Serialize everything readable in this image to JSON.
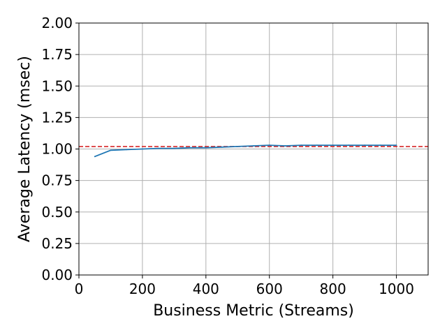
{
  "chart_data": {
    "type": "line",
    "title": "",
    "xlabel": "Business Metric (Streams)",
    "ylabel": "Average Latency (msec)",
    "xlim": [
      0,
      1100
    ],
    "ylim": [
      0,
      2.0
    ],
    "x_ticks": [
      0,
      200,
      400,
      600,
      800,
      1000
    ],
    "x_tick_labels": [
      "0",
      "200",
      "400",
      "600",
      "800",
      "1000"
    ],
    "y_ticks": [
      0,
      0.25,
      0.5,
      0.75,
      1.0,
      1.25,
      1.5,
      1.75,
      2.0
    ],
    "y_tick_labels": [
      "0.00",
      "0.25",
      "0.50",
      "0.75",
      "1.00",
      "1.25",
      "1.50",
      "1.75",
      "2.00"
    ],
    "grid": true,
    "legend": "none",
    "series": [
      {
        "color": "#1f77b4",
        "x": [
          50,
          100,
          150,
          200,
          250,
          300,
          350,
          400,
          450,
          500,
          550,
          600,
          650,
          700,
          750,
          800,
          850,
          900,
          950,
          1000
        ],
        "y": [
          0.94,
          0.99,
          0.995,
          1.0,
          1.005,
          1.005,
          1.01,
          1.01,
          1.015,
          1.02,
          1.025,
          1.03,
          1.025,
          1.03,
          1.03,
          1.03,
          1.03,
          1.03,
          1.03,
          1.03
        ]
      }
    ],
    "reference_lines": [
      {
        "orientation": "horizontal",
        "y": 1.02,
        "color": "#d62728",
        "style": "dashed"
      }
    ]
  }
}
